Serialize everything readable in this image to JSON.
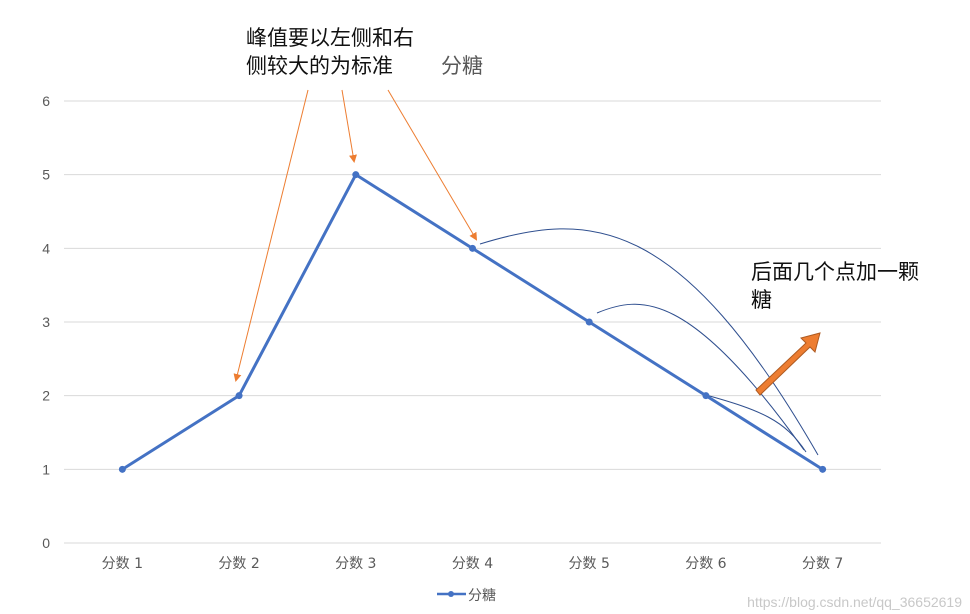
{
  "chart_data": {
    "type": "line",
    "title": "分糖",
    "categories": [
      "分数 1",
      "分数 2",
      "分数 3",
      "分数 4",
      "分数 5",
      "分数 6",
      "分数 7"
    ],
    "series": [
      {
        "name": "分糖",
        "values": [
          1,
          2,
          5,
          4,
          3,
          2,
          1
        ],
        "color": "#4472c4"
      }
    ],
    "ylim": [
      0,
      6
    ],
    "yticks": [
      "0",
      "1",
      "2",
      "3",
      "4",
      "5",
      "6"
    ],
    "grid": true,
    "legend": "bottom",
    "annotations": [
      {
        "text_lines": [
          "峰值要以左侧和右",
          "侧较大的为标准"
        ],
        "color": "#ed7d31"
      },
      {
        "text_lines": [
          "后面几个点加一颗",
          "糖"
        ],
        "arrow_color": "#ed7d31"
      }
    ]
  },
  "watermark": "https://blog.csdn.net/qq_36652619"
}
